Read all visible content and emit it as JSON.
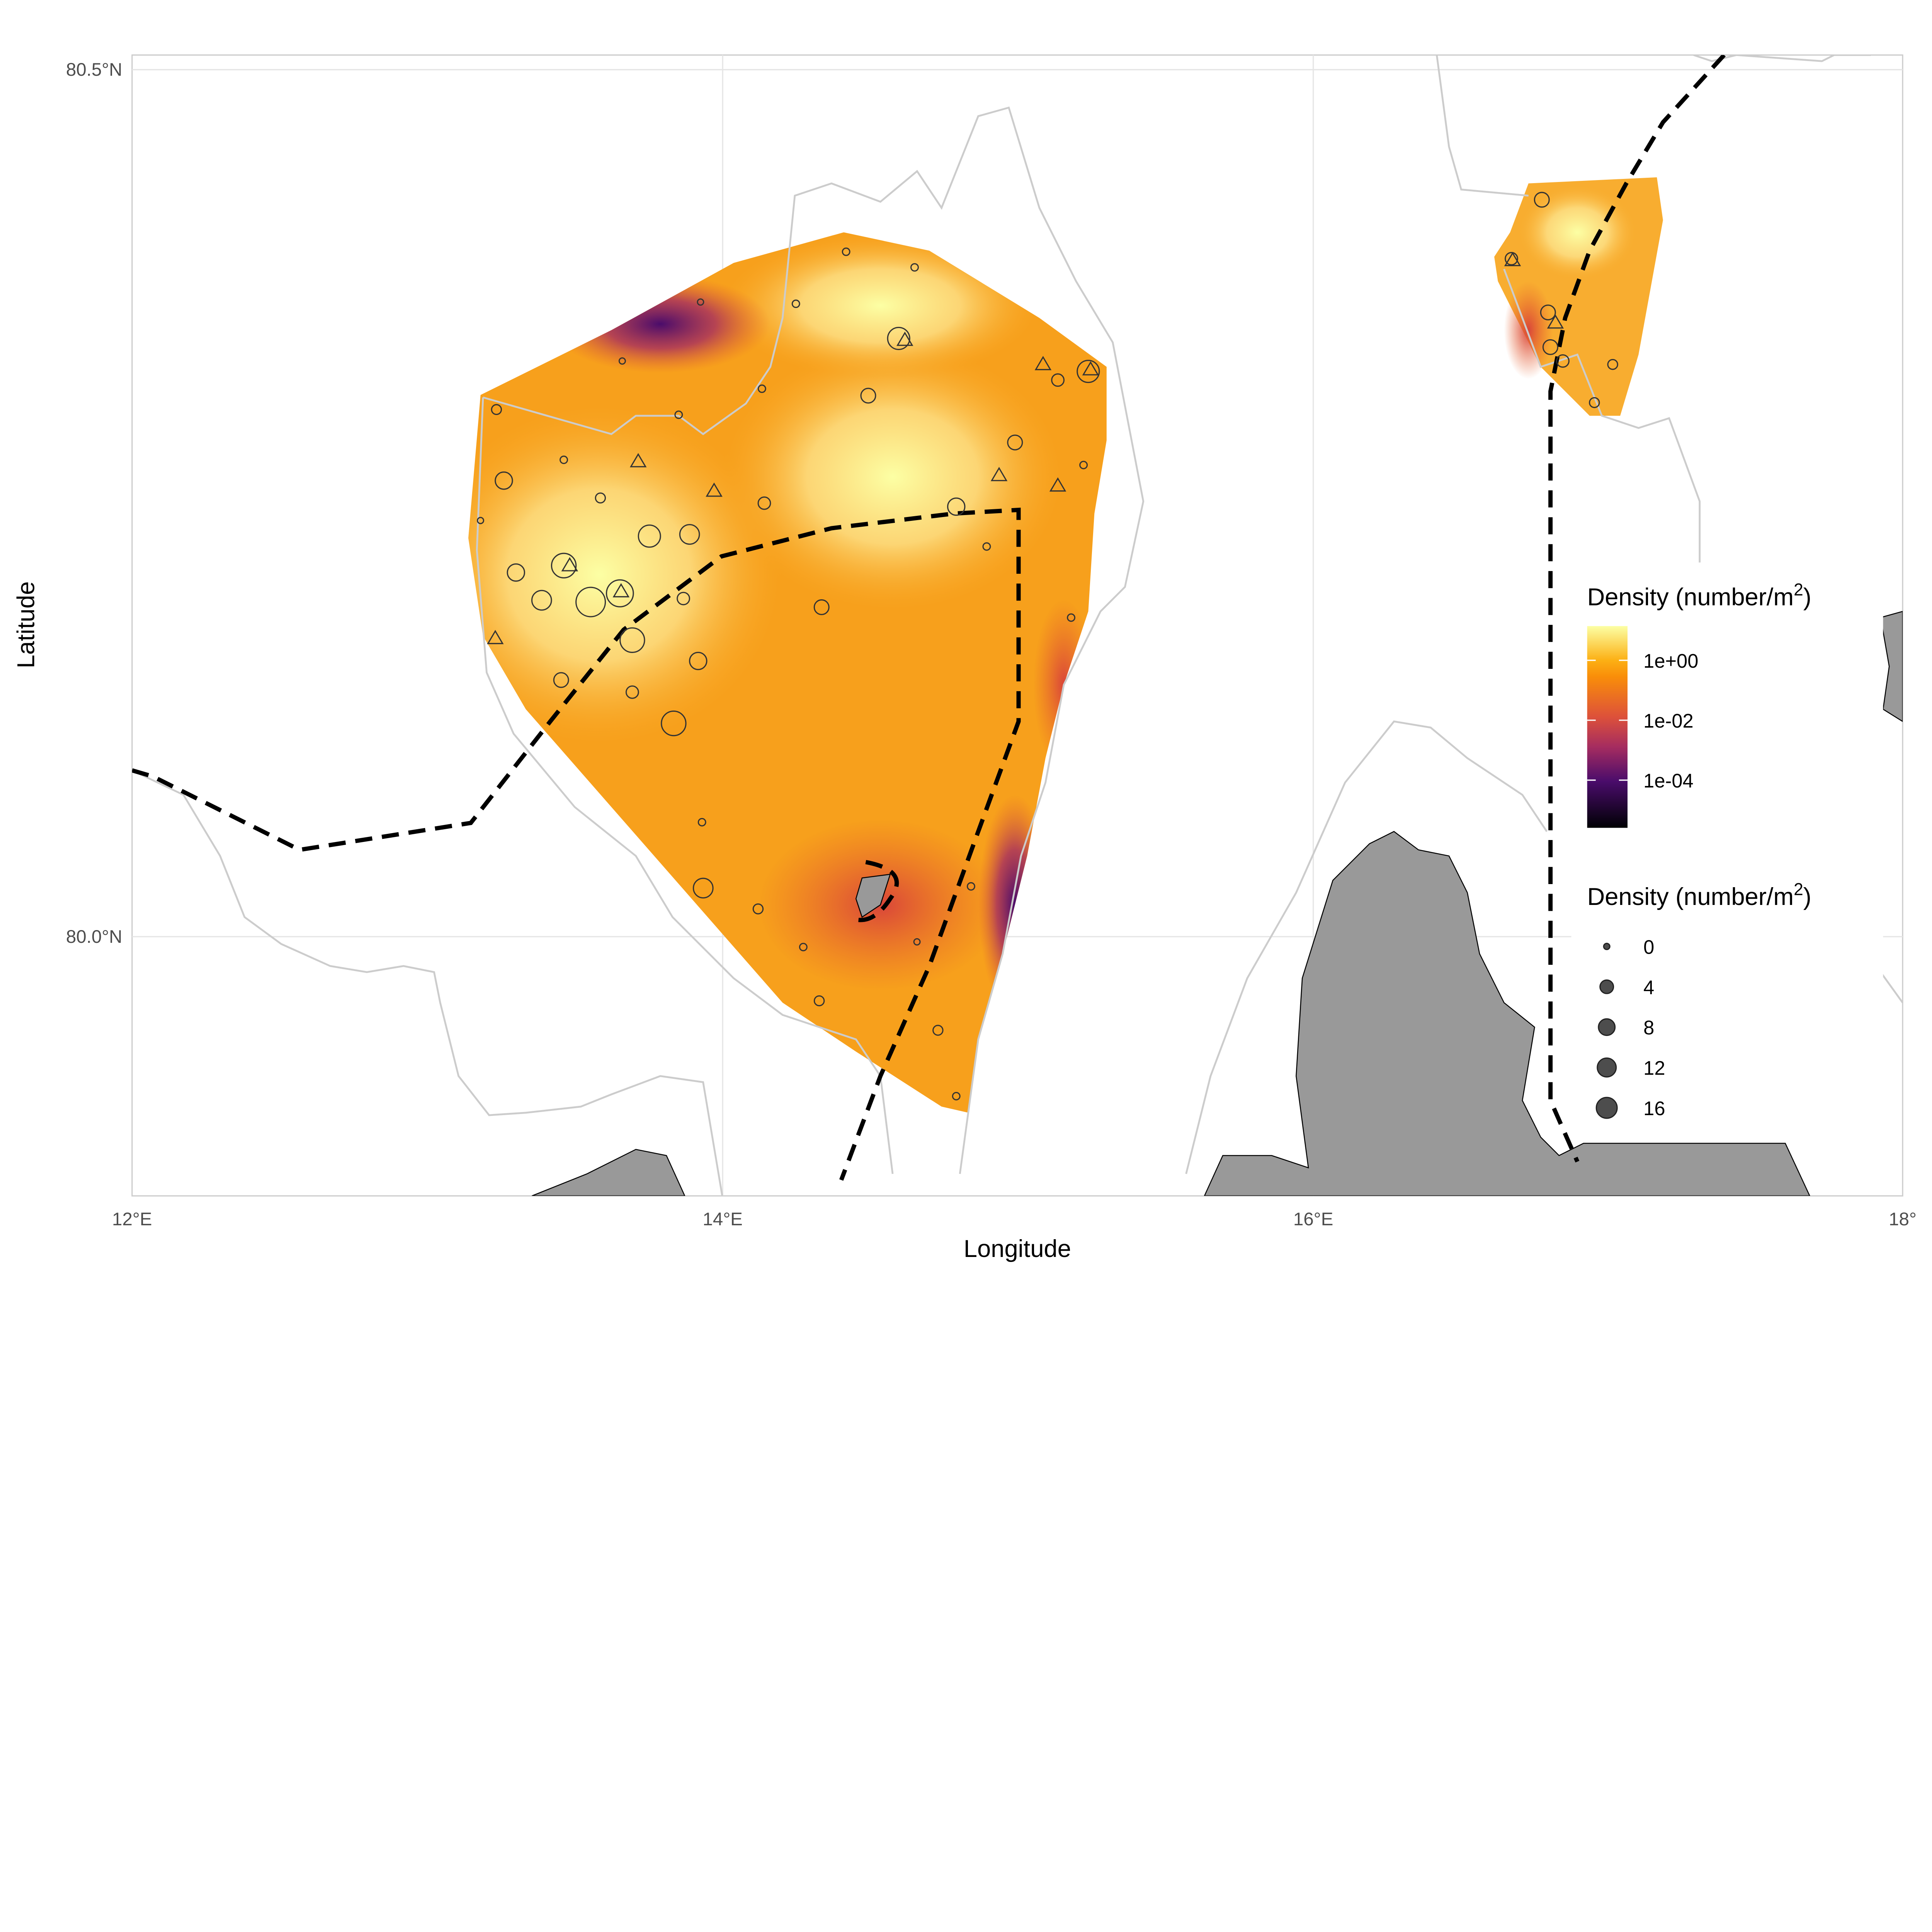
{
  "chart_data": {
    "type": "scatter",
    "subtype": "map with interpolated density surface",
    "xlabel": "Longitude",
    "ylabel": "Latitude",
    "xlim": [
      12,
      18
    ],
    "ylim": [
      79.85,
      80.51
    ],
    "x_ticks": [
      {
        "value": 12,
        "label": "12°E"
      },
      {
        "value": 14,
        "label": "14°E"
      },
      {
        "value": 16,
        "label": "16°E"
      },
      {
        "value": 18,
        "label": "18°"
      }
    ],
    "y_ticks": [
      {
        "value": 80.0,
        "label": "80.0°N"
      },
      {
        "value": 80.5,
        "label": "80.5°N"
      }
    ],
    "grid": true,
    "colors": {
      "land": "#999999",
      "coastline": "#cccccc",
      "boundary": "#000000",
      "point_outline": "#333333",
      "legend_point_fill": "#4d4d4d"
    },
    "color_legend": {
      "title": "Density (number/m",
      "title_sup": "2",
      "title_end": ")",
      "scale": "log10, inferno palette",
      "breaks": [
        "1e+00",
        "1e-02",
        "1e-04"
      ],
      "palette": [
        "#fcffa4",
        "#f98e09",
        "#bc3754",
        "#57106e",
        "#000004"
      ]
    },
    "size_legend": {
      "title": "Density (number/m",
      "title_sup": "2",
      "title_end": ")",
      "breaks": [
        {
          "value": 0,
          "label": "0"
        },
        {
          "value": 4,
          "label": "4"
        },
        {
          "value": 8,
          "label": "8"
        },
        {
          "value": 12,
          "label": "12"
        },
        {
          "value": 16,
          "label": "16"
        }
      ]
    },
    "circles": [
      [
        13.234,
        80.304,
        1
      ],
      [
        13.259,
        80.263,
        9
      ],
      [
        13.462,
        80.275,
        0.1
      ],
      [
        13.586,
        80.253,
        1
      ],
      [
        13.18,
        80.24,
        0
      ],
      [
        13.3,
        80.21,
        9
      ],
      [
        13.387,
        80.194,
        13.4
      ],
      [
        13.553,
        80.193,
        40
      ],
      [
        13.462,
        80.214,
        25
      ],
      [
        13.652,
        80.198,
        32
      ],
      [
        13.752,
        80.231,
        18.8
      ],
      [
        13.888,
        80.232,
        13.4
      ],
      [
        13.694,
        80.171,
        25
      ],
      [
        13.867,
        80.195,
        2.8
      ],
      [
        13.917,
        80.159,
        9
      ],
      [
        13.453,
        80.148,
        5.4
      ],
      [
        13.694,
        80.141,
        2.8
      ],
      [
        13.834,
        80.123,
        25
      ],
      [
        14.141,
        80.25,
        2.8
      ],
      [
        13.934,
        80.028,
        13.4
      ],
      [
        14.12,
        80.016,
        1
      ],
      [
        14.273,
        79.994,
        0.1
      ],
      [
        14.327,
        79.963,
        1
      ],
      [
        14.658,
        79.997,
        0
      ],
      [
        14.729,
        79.946,
        1
      ],
      [
        14.791,
        79.908,
        0.1
      ],
      [
        14.841,
        80.029,
        0.1
      ],
      [
        14.493,
        80.312,
        5.4
      ],
      [
        14.596,
        80.345,
        18.8
      ],
      [
        14.791,
        80.248,
        9
      ],
      [
        14.99,
        80.285,
        5.4
      ],
      [
        14.894,
        80.225,
        0.1
      ],
      [
        15.222,
        80.272,
        0.1
      ],
      [
        15.135,
        80.321,
        2.8
      ],
      [
        15.238,
        80.326,
        18.8
      ],
      [
        15.18,
        80.184,
        0.1
      ],
      [
        14.335,
        80.19,
        5.4
      ],
      [
        14.133,
        80.316,
        0.1
      ],
      [
        14.248,
        80.365,
        0.1
      ],
      [
        14.418,
        80.395,
        0.1
      ],
      [
        14.65,
        80.386,
        0.1
      ],
      [
        13.925,
        80.366,
        0
      ],
      [
        13.66,
        80.332,
        0
      ],
      [
        13.851,
        80.301,
        0.1
      ],
      [
        13.93,
        80.066,
        0.1
      ],
      [
        16.774,
        80.425,
        5.4
      ],
      [
        16.671,
        80.391,
        2.8
      ],
      [
        16.795,
        80.36,
        5.4
      ],
      [
        16.803,
        80.34,
        5.4
      ],
      [
        16.845,
        80.332,
        2.8
      ],
      [
        17.014,
        80.33,
        1
      ],
      [
        16.952,
        80.308,
        1
      ]
    ],
    "triangles": [
      [
        13.482,
        80.214
      ],
      [
        13.656,
        80.199
      ],
      [
        13.714,
        80.274
      ],
      [
        13.971,
        80.257
      ],
      [
        14.617,
        80.344
      ],
      [
        15.085,
        80.33
      ],
      [
        15.246,
        80.327
      ],
      [
        14.936,
        80.266
      ],
      [
        15.135,
        80.26
      ],
      [
        13.23,
        80.172
      ],
      [
        16.675,
        80.39
      ],
      [
        16.82,
        80.354
      ]
    ]
  }
}
